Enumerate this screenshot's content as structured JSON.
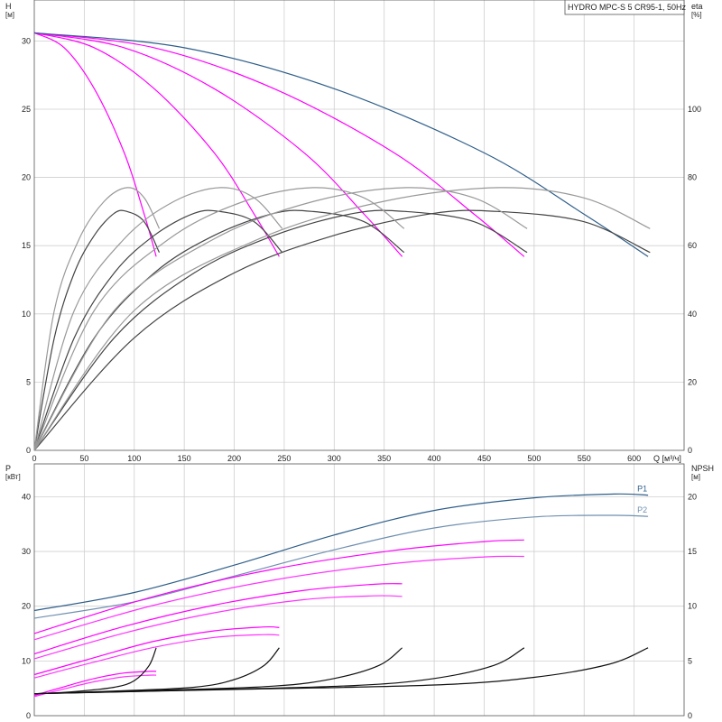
{
  "chart_data": [
    {
      "type": "line",
      "legend_text": "HYDRO MPC-S 5 CR95-1, 50Hz",
      "x_unit_label": "Q [м³/ч]",
      "xlim": [
        0,
        650
      ],
      "xticks": [
        0,
        50,
        100,
        150,
        200,
        250,
        300,
        350,
        400,
        450,
        500,
        550,
        600
      ],
      "x_label_positioned": "right",
      "grid": true,
      "y_left": {
        "label": "H",
        "unit": "[м]",
        "ylim": [
          0,
          33
        ],
        "ticks": [
          0,
          5,
          10,
          15,
          20,
          25,
          30
        ]
      },
      "y_right": {
        "label": "eta",
        "unit": "[%]",
        "ylim": [
          0,
          132
        ],
        "ticks": [
          0,
          20,
          40,
          60,
          80,
          100
        ]
      },
      "series": [
        {
          "axis": "left",
          "color": "#ff00ff",
          "points": [
            [
              0,
              30.6
            ],
            [
              30,
              29.5
            ],
            [
              60,
              26.5
            ],
            [
              90,
              21.8
            ],
            [
              110,
              17.3
            ],
            [
              122,
              14.2
            ]
          ]
        },
        {
          "axis": "left",
          "color": "#ff00ff",
          "points": [
            [
              0,
              30.6
            ],
            [
              60,
              29.5
            ],
            [
              120,
              26.5
            ],
            [
              180,
              21.8
            ],
            [
              220,
              17.3
            ],
            [
              245,
              14.2
            ]
          ]
        },
        {
          "axis": "left",
          "color": "#ff00ff",
          "points": [
            [
              0,
              30.6
            ],
            [
              90,
              29.5
            ],
            [
              180,
              26.5
            ],
            [
              270,
              21.8
            ],
            [
              330,
              17.3
            ],
            [
              368,
              14.2
            ]
          ]
        },
        {
          "axis": "left",
          "color": "#ff00ff",
          "points": [
            [
              0,
              30.6
            ],
            [
              120,
              29.5
            ],
            [
              240,
              26.5
            ],
            [
              360,
              21.8
            ],
            [
              440,
              17.3
            ],
            [
              490,
              14.2
            ]
          ]
        },
        {
          "axis": "left",
          "color": "#2e5e8a",
          "points": [
            [
              0,
              30.6
            ],
            [
              150,
              29.5
            ],
            [
              300,
              26.5
            ],
            [
              450,
              21.8
            ],
            [
              550,
              17.3
            ],
            [
              614,
              14.2
            ]
          ]
        },
        {
          "axis": "right",
          "color": "#444444",
          "points": [
            [
              0,
              0
            ],
            [
              20,
              33
            ],
            [
              40,
              52
            ],
            [
              60,
              63
            ],
            [
              80,
              69.5
            ],
            [
              93,
              70
            ],
            [
              110,
              67
            ],
            [
              125,
              58
            ]
          ]
        },
        {
          "axis": "right",
          "color": "#444444",
          "points": [
            [
              0,
              0
            ],
            [
              40,
              33
            ],
            [
              80,
              52
            ],
            [
              120,
              63
            ],
            [
              160,
              69.5
            ],
            [
              186,
              70
            ],
            [
              220,
              67
            ],
            [
              248,
              58
            ]
          ]
        },
        {
          "axis": "right",
          "color": "#444444",
          "points": [
            [
              0,
              0
            ],
            [
              60,
              33
            ],
            [
              120,
              52
            ],
            [
              180,
              63
            ],
            [
              240,
              69.5
            ],
            [
              279,
              70
            ],
            [
              330,
              67
            ],
            [
              370,
              58
            ]
          ]
        },
        {
          "axis": "right",
          "color": "#444444",
          "points": [
            [
              0,
              0
            ],
            [
              80,
              33
            ],
            [
              160,
              52
            ],
            [
              240,
              63
            ],
            [
              320,
              69.5
            ],
            [
              372,
              70
            ],
            [
              440,
              67
            ],
            [
              493,
              58
            ]
          ]
        },
        {
          "axis": "right",
          "color": "#444444",
          "points": [
            [
              0,
              0
            ],
            [
              100,
              33
            ],
            [
              200,
              52
            ],
            [
              300,
              63
            ],
            [
              400,
              69.5
            ],
            [
              465,
              70
            ],
            [
              550,
              67
            ],
            [
              616,
              58
            ]
          ]
        },
        {
          "axis": "right",
          "color": "#999999",
          "points": [
            [
              0,
              0
            ],
            [
              20,
              41
            ],
            [
              45,
              62
            ],
            [
              70,
              73
            ],
            [
              93,
              77
            ],
            [
              110,
              74
            ],
            [
              125,
              65
            ]
          ]
        },
        {
          "axis": "right",
          "color": "#999999",
          "points": [
            [
              0,
              0
            ],
            [
              40,
              41
            ],
            [
              90,
              62
            ],
            [
              140,
              73
            ],
            [
              186,
              77
            ],
            [
              220,
              74
            ],
            [
              248,
              65
            ]
          ]
        },
        {
          "axis": "right",
          "color": "#999999",
          "points": [
            [
              0,
              0
            ],
            [
              60,
              41
            ],
            [
              135,
              62
            ],
            [
              210,
              73
            ],
            [
              279,
              77
            ],
            [
              330,
              74
            ],
            [
              370,
              65
            ]
          ]
        },
        {
          "axis": "right",
          "color": "#999999",
          "points": [
            [
              0,
              0
            ],
            [
              80,
              41
            ],
            [
              180,
              62
            ],
            [
              280,
              73
            ],
            [
              372,
              77
            ],
            [
              440,
              74
            ],
            [
              493,
              65
            ]
          ]
        },
        {
          "axis": "right",
          "color": "#999999",
          "points": [
            [
              0,
              0
            ],
            [
              100,
              41
            ],
            [
              225,
              62
            ],
            [
              350,
              73
            ],
            [
              465,
              77
            ],
            [
              550,
              74
            ],
            [
              616,
              65
            ]
          ]
        }
      ]
    },
    {
      "type": "line",
      "xlim": [
        0,
        650
      ],
      "grid": true,
      "y_left": {
        "label": "P",
        "unit": "[кВт]",
        "ylim": [
          0,
          46
        ],
        "ticks": [
          0,
          10,
          20,
          30,
          40
        ]
      },
      "y_right": {
        "label": "NPSH",
        "unit": "[м]",
        "ylim": [
          0,
          23
        ],
        "ticks": [
          0,
          5,
          10,
          15,
          20
        ]
      },
      "series": [
        {
          "name": "P1",
          "axis": "left",
          "color": "#2e5e8a",
          "points": [
            [
              0,
              19.2
            ],
            [
              100,
              22.5
            ],
            [
              200,
              27.5
            ],
            [
              300,
              33
            ],
            [
              400,
              37.5
            ],
            [
              500,
              39.8
            ],
            [
              580,
              40.5
            ],
            [
              614,
              40.3
            ]
          ]
        },
        {
          "name": "P2",
          "axis": "left",
          "color": "#6f8fb0",
          "points": [
            [
              0,
              17.8
            ],
            [
              100,
              20.8
            ],
            [
              200,
              25.5
            ],
            [
              300,
              30.3
            ],
            [
              400,
              34.3
            ],
            [
              500,
              36.3
            ],
            [
              580,
              36.6
            ],
            [
              614,
              36.4
            ]
          ]
        },
        {
          "axis": "left",
          "color": "#ff00ff",
          "points": [
            [
              0,
              15
            ],
            [
              120,
              21.8
            ],
            [
              240,
              26.8
            ],
            [
              360,
              30.2
            ],
            [
              450,
              31.8
            ],
            [
              490,
              32.1
            ]
          ]
        },
        {
          "axis": "left",
          "color": "#ff33ff",
          "points": [
            [
              0,
              13.9
            ],
            [
              120,
              20.2
            ],
            [
              240,
              24.8
            ],
            [
              360,
              27.8
            ],
            [
              450,
              29
            ],
            [
              490,
              29.1
            ]
          ]
        },
        {
          "axis": "left",
          "color": "#ff00ff",
          "points": [
            [
              0,
              11.3
            ],
            [
              90,
              16.3
            ],
            [
              180,
              20.2
            ],
            [
              270,
              22.9
            ],
            [
              340,
              24
            ],
            [
              368,
              24.1
            ]
          ]
        },
        {
          "axis": "left",
          "color": "#ff33ff",
          "points": [
            [
              0,
              10.4
            ],
            [
              90,
              15.1
            ],
            [
              180,
              18.8
            ],
            [
              270,
              21.2
            ],
            [
              340,
              21.9
            ],
            [
              368,
              21.8
            ]
          ]
        },
        {
          "axis": "left",
          "color": "#ff00ff",
          "points": [
            [
              0,
              7.5
            ],
            [
              60,
              10.6
            ],
            [
              120,
              13.6
            ],
            [
              180,
              15.5
            ],
            [
              230,
              16.2
            ],
            [
              245,
              16.1
            ]
          ]
        },
        {
          "axis": "left",
          "color": "#ff33ff",
          "points": [
            [
              0,
              6.9
            ],
            [
              60,
              9.8
            ],
            [
              120,
              12.5
            ],
            [
              180,
              14.3
            ],
            [
              230,
              14.8
            ],
            [
              245,
              14.7
            ]
          ]
        },
        {
          "axis": "left",
          "color": "#ff00ff",
          "points": [
            [
              0,
              3.7
            ],
            [
              30,
              5.3
            ],
            [
              60,
              6.8
            ],
            [
              90,
              7.8
            ],
            [
              115,
              8.1
            ],
            [
              122,
              8.1
            ]
          ]
        },
        {
          "axis": "left",
          "color": "#ff33ff",
          "points": [
            [
              0,
              3.5
            ],
            [
              30,
              4.9
            ],
            [
              60,
              6.2
            ],
            [
              90,
              7.1
            ],
            [
              115,
              7.4
            ],
            [
              122,
              7.4
            ]
          ]
        },
        {
          "axis": "right",
          "color": "#111111",
          "points": [
            [
              0,
              2
            ],
            [
              40,
              2.2
            ],
            [
              80,
              2.6
            ],
            [
              100,
              3.2
            ],
            [
              115,
              4.6
            ],
            [
              122,
              6.2
            ]
          ]
        },
        {
          "axis": "right",
          "color": "#111111",
          "points": [
            [
              0,
              2
            ],
            [
              80,
              2.25
            ],
            [
              160,
              2.6
            ],
            [
              200,
              3.3
            ],
            [
              230,
              4.6
            ],
            [
              245,
              6.2
            ]
          ]
        },
        {
          "axis": "right",
          "color": "#111111",
          "points": [
            [
              0,
              2
            ],
            [
              120,
              2.3
            ],
            [
              240,
              2.7
            ],
            [
              300,
              3.4
            ],
            [
              345,
              4.6
            ],
            [
              368,
              6.2
            ]
          ]
        },
        {
          "axis": "right",
          "color": "#111111",
          "points": [
            [
              0,
              2
            ],
            [
              160,
              2.35
            ],
            [
              320,
              2.75
            ],
            [
              400,
              3.4
            ],
            [
              460,
              4.6
            ],
            [
              490,
              6.2
            ]
          ]
        },
        {
          "axis": "right",
          "color": "#111111",
          "points": [
            [
              0,
              2
            ],
            [
              200,
              2.4
            ],
            [
              400,
              2.8
            ],
            [
              500,
              3.5
            ],
            [
              575,
              4.7
            ],
            [
              614,
              6.2
            ]
          ]
        }
      ]
    }
  ]
}
